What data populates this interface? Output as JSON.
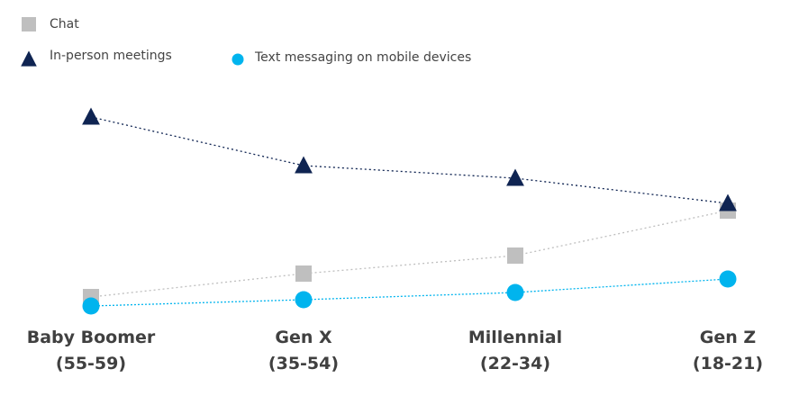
{
  "chart_data": {
    "type": "line",
    "title": "",
    "xlabel": "",
    "ylabel": "",
    "grid": false,
    "legend_position": "top-left",
    "categories": [
      [
        "Baby Boomer",
        "(55-59)"
      ],
      [
        "Gen X",
        "(35-54)"
      ],
      [
        "Millennial",
        "(22-34)"
      ],
      [
        "Gen Z",
        "(18-21)"
      ]
    ],
    "ylim": [
      0,
      100
    ],
    "series": [
      {
        "name": "Chat",
        "marker": "square",
        "color": "#BFBFBF",
        "values": [
          5,
          18,
          28,
          53
        ]
      },
      {
        "name": "In-person meetings",
        "marker": "triangle",
        "color": "#0F2452",
        "values": [
          105,
          78,
          71,
          57
        ]
      },
      {
        "name": "Text messaging on mobile devices",
        "marker": "circle",
        "color": "#00B4EE",
        "values": [
          0,
          3.5,
          7.5,
          15
        ]
      }
    ]
  }
}
